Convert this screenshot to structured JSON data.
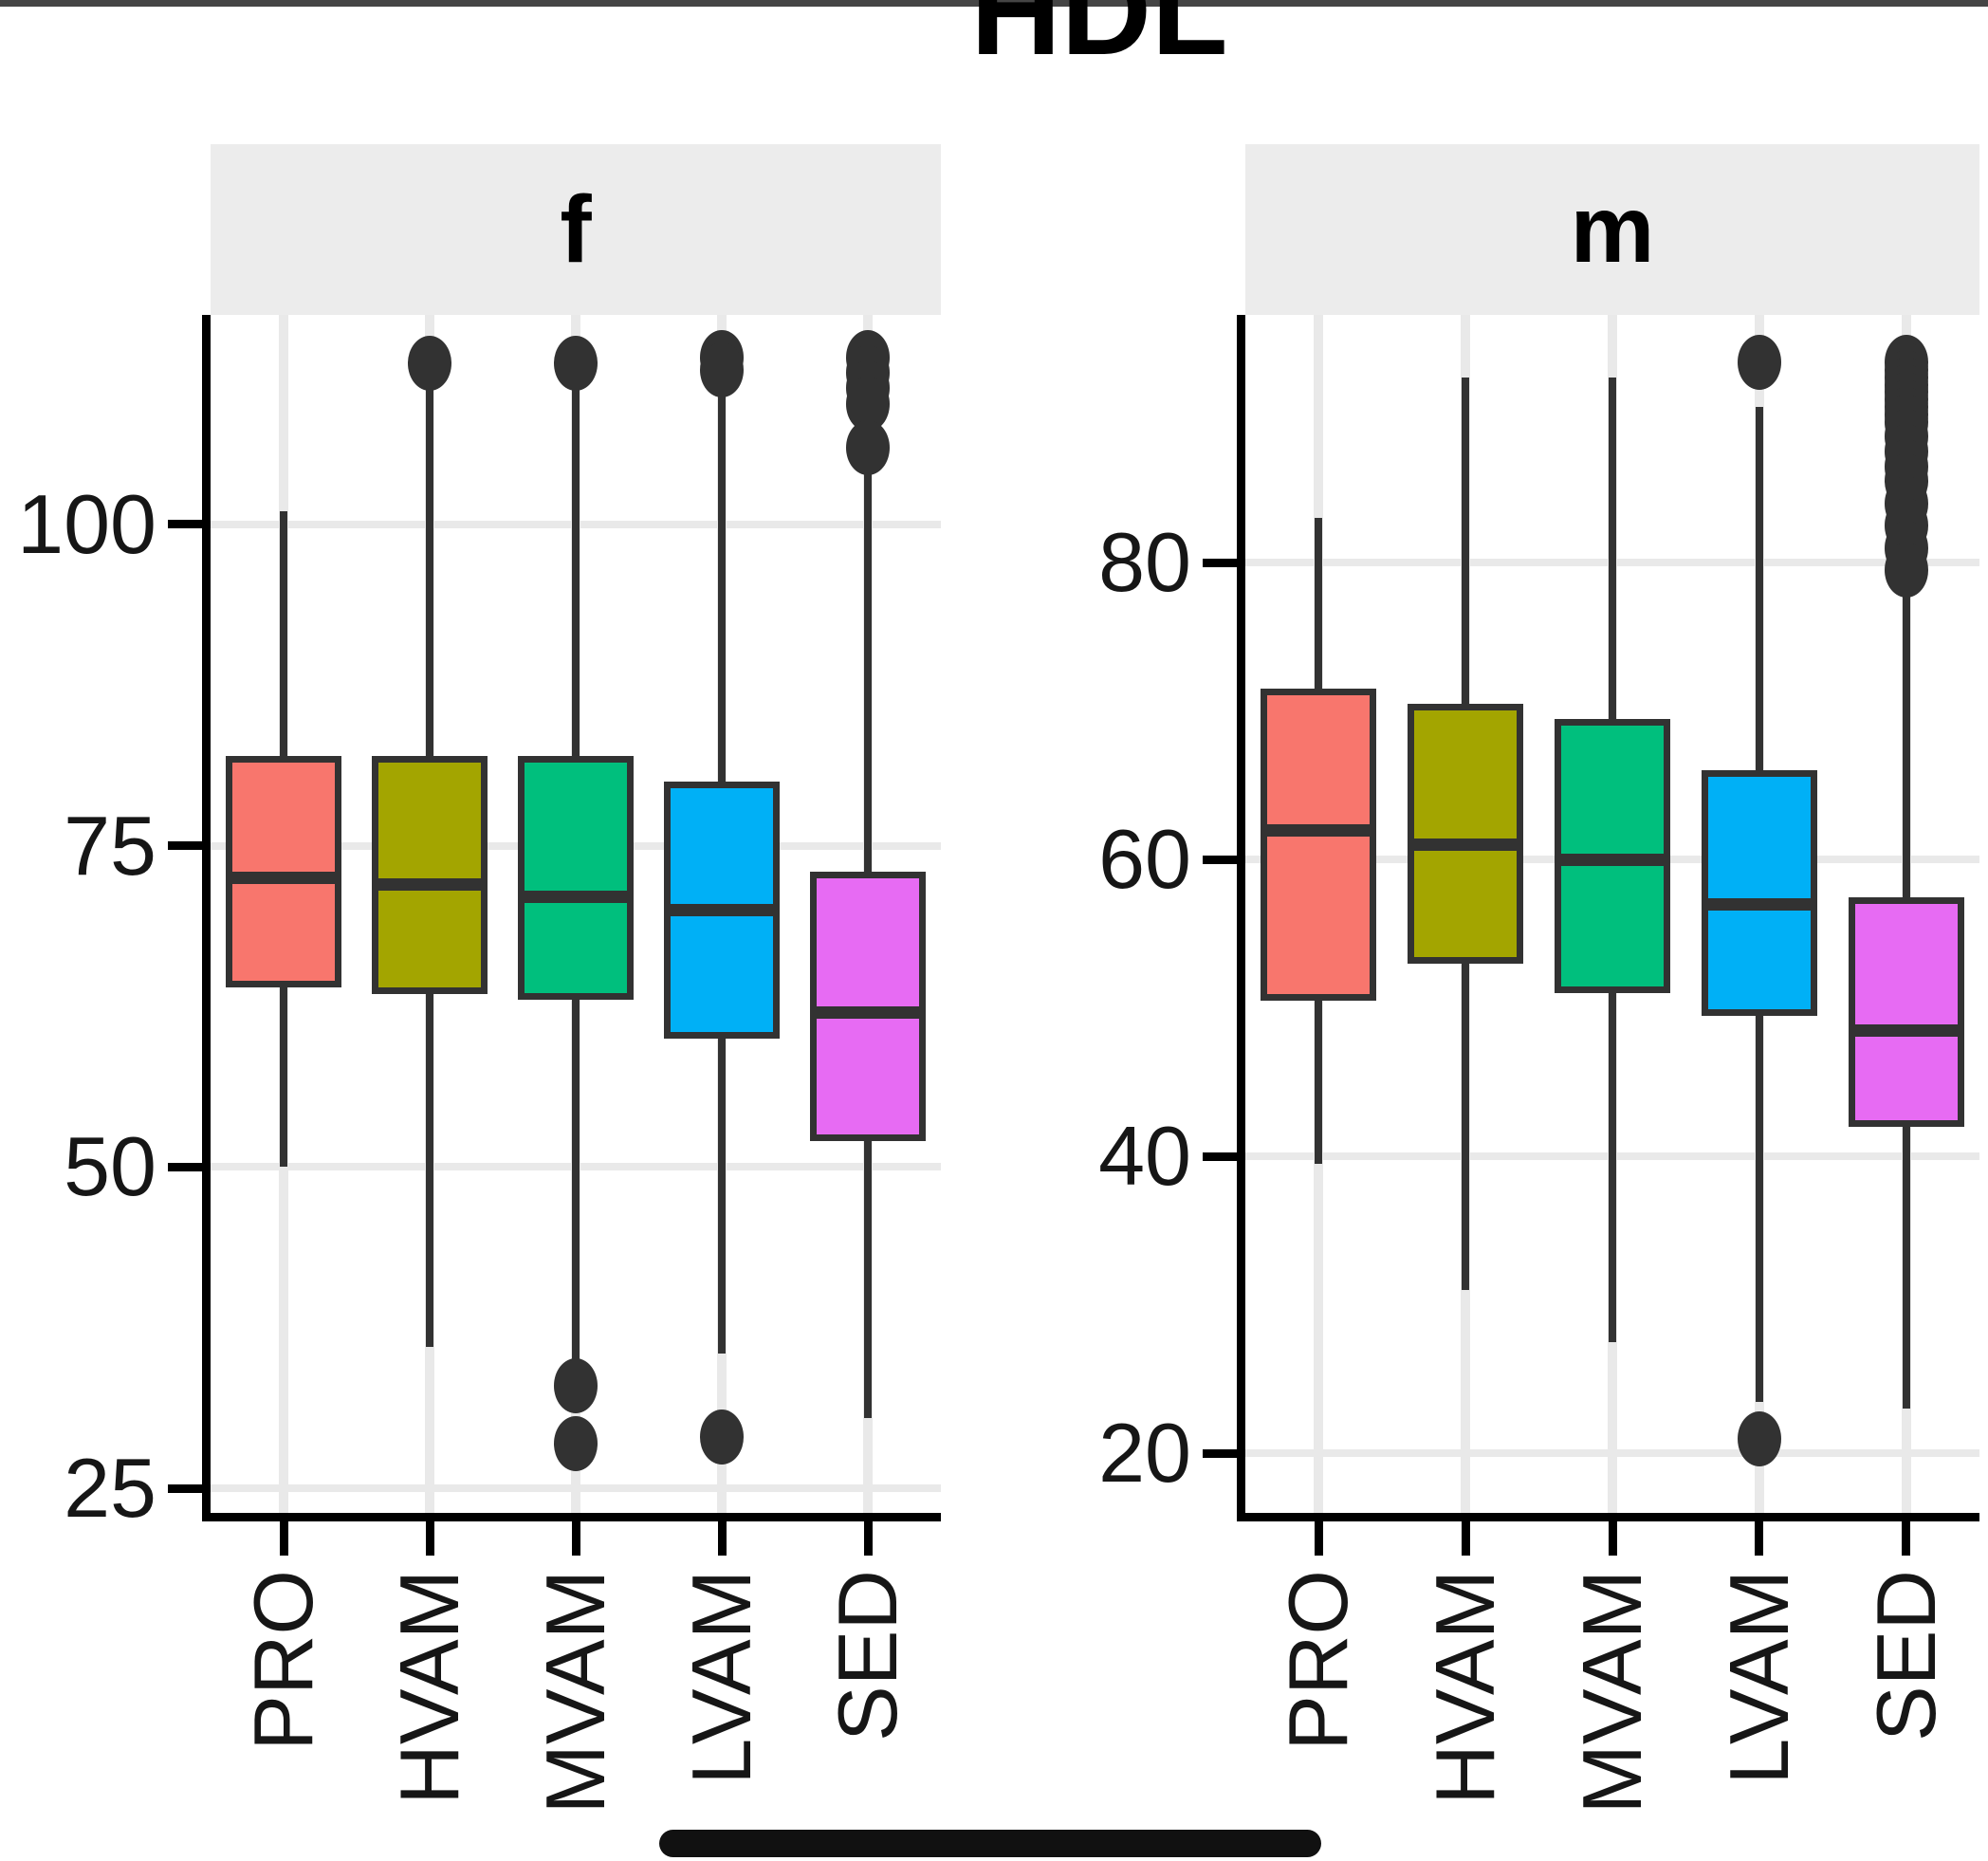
{
  "chart_data": {
    "type": "boxplot",
    "title": "HDL",
    "facet_labels": [
      "f",
      "m"
    ],
    "categories": [
      "PRO",
      "HVAM",
      "MVAM",
      "LVAM",
      "SED"
    ],
    "palette": {
      "PRO": "#F8766D",
      "HVAM": "#A3A500",
      "MVAM": "#00BF7D",
      "LVAM": "#00B0F6",
      "SED": "#E76BF3"
    },
    "legend": "none",
    "grid": "on",
    "panels": [
      {
        "facet": "f",
        "yticks": [
          25,
          50,
          75,
          100
        ],
        "ydomain": [
          23.1,
          116.3
        ],
        "boxes": [
          {
            "category": "PRO",
            "whislo": 50,
            "q1": 64,
            "med": 72.5,
            "q3": 82,
            "whishi": 101,
            "outliers": []
          },
          {
            "category": "HVAM",
            "whislo": 36,
            "q1": 63.5,
            "med": 72,
            "q3": 82,
            "whishi": 110.5,
            "outliers": [
              112.5
            ]
          },
          {
            "category": "MVAM",
            "whislo": 35,
            "q1": 63,
            "med": 71,
            "q3": 82,
            "whishi": 110.5,
            "outliers": [
              112.5,
              33,
              28.5
            ]
          },
          {
            "category": "LVAM",
            "whislo": 35.5,
            "q1": 60,
            "med": 70,
            "q3": 80,
            "whishi": 110,
            "outliers": [
              113,
              112,
              29
            ]
          },
          {
            "category": "SED",
            "whislo": 30.5,
            "q1": 52,
            "med": 62,
            "q3": 73,
            "whishi": 104.5,
            "outliers": [
              113,
              111.8,
              110.6,
              109.4,
              106
            ]
          }
        ]
      },
      {
        "facet": "m",
        "yticks": [
          20,
          40,
          60,
          80
        ],
        "ydomain": [
          16,
          96.7
        ],
        "boxes": [
          {
            "category": "PRO",
            "whislo": 39.5,
            "q1": 50.5,
            "med": 62,
            "q3": 71.5,
            "whishi": 83,
            "outliers": []
          },
          {
            "category": "HVAM",
            "whislo": 31,
            "q1": 53,
            "med": 61,
            "q3": 70.5,
            "whishi": 92.5,
            "outliers": []
          },
          {
            "category": "MVAM",
            "whislo": 27.5,
            "q1": 51,
            "med": 60,
            "q3": 69.5,
            "whishi": 92.5,
            "outliers": []
          },
          {
            "category": "LVAM",
            "whislo": 23.5,
            "q1": 49.5,
            "med": 57,
            "q3": 66,
            "whishi": 90.5,
            "outliers": [
              93.5,
              21
            ]
          },
          {
            "category": "SED",
            "whislo": 23,
            "q1": 42,
            "med": 48.5,
            "q3": 57.5,
            "whishi": 78,
            "outliers": [
              93.5,
              93,
              92.5,
              92,
              91.5,
              91,
              90.5,
              90,
              89.5,
              88.5,
              87.5,
              86.5,
              85.5,
              84,
              82.5,
              81,
              79.5
            ]
          }
        ]
      }
    ],
    "styles": {
      "box_stroke": "#323232",
      "axis_color": "#000000",
      "grid_color": "#e9e9e9",
      "strip_bg": "#ececec",
      "text_color": "#161616",
      "top_bar": "#454545",
      "bottom_bar": "#111111"
    }
  }
}
